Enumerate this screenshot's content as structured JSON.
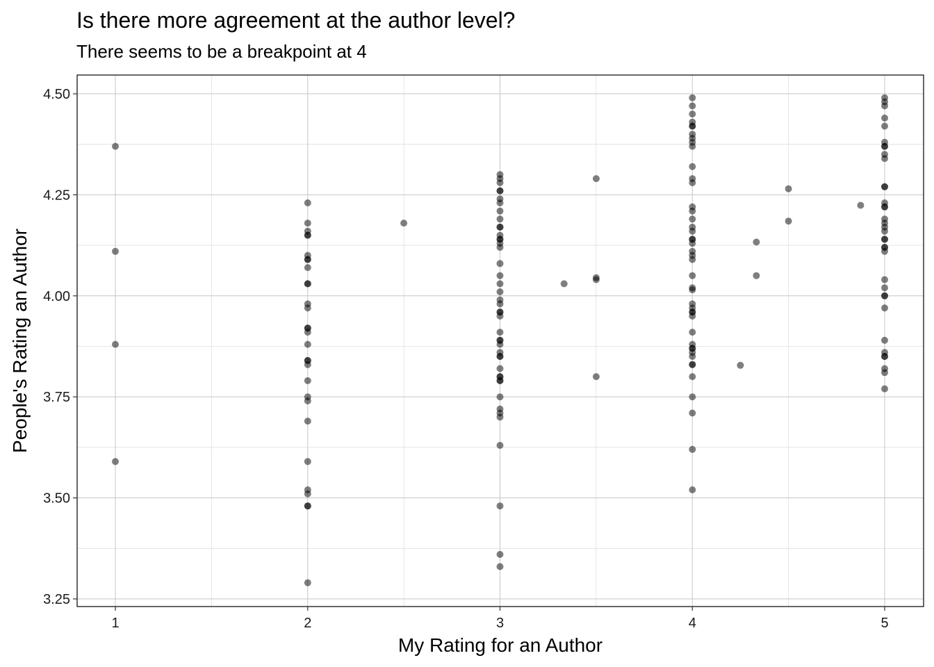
{
  "chart_data": {
    "type": "scatter",
    "title": "Is there more agreement at the author level?",
    "subtitle": "There seems to be a breakpoint at 4",
    "xlabel": "My Rating for an Author",
    "ylabel": "People's Rating an Author",
    "xlim": [
      0.8,
      5.2
    ],
    "ylim": [
      3.23,
      4.55
    ],
    "x_ticks": [
      1,
      2,
      3,
      4,
      5
    ],
    "x_tick_labels": [
      "1",
      "2",
      "3",
      "4",
      "5"
    ],
    "y_ticks": [
      3.25,
      3.5,
      3.75,
      4.0,
      4.25,
      4.5
    ],
    "y_tick_labels": [
      "3.25",
      "3.50",
      "3.75",
      "4.00",
      "4.25",
      "4.50"
    ],
    "grid": true,
    "point_color": "#000000",
    "point_opacity": 0.5,
    "points": [
      [
        1,
        4.37
      ],
      [
        1,
        4.11
      ],
      [
        1,
        3.88
      ],
      [
        1,
        3.59
      ],
      [
        2,
        4.23
      ],
      [
        2,
        4.18
      ],
      [
        2,
        4.16
      ],
      [
        2,
        4.15
      ],
      [
        2,
        4.15
      ],
      [
        2,
        4.1
      ],
      [
        2,
        4.09
      ],
      [
        2,
        4.09
      ],
      [
        2,
        4.07
      ],
      [
        2,
        4.03
      ],
      [
        2,
        4.03
      ],
      [
        2,
        3.98
      ],
      [
        2,
        3.97
      ],
      [
        2,
        3.92
      ],
      [
        2,
        3.92
      ],
      [
        2,
        3.91
      ],
      [
        2,
        3.88
      ],
      [
        2,
        3.84
      ],
      [
        2,
        3.84
      ],
      [
        2,
        3.83
      ],
      [
        2,
        3.79
      ],
      [
        2,
        3.75
      ],
      [
        2,
        3.74
      ],
      [
        2,
        3.69
      ],
      [
        2,
        3.59
      ],
      [
        2,
        3.52
      ],
      [
        2,
        3.51
      ],
      [
        2,
        3.48
      ],
      [
        2,
        3.48
      ],
      [
        2,
        3.29
      ],
      [
        2.5,
        4.18
      ],
      [
        3,
        4.3
      ],
      [
        3,
        4.29
      ],
      [
        3,
        4.28
      ],
      [
        3,
        4.26
      ],
      [
        3,
        4.26
      ],
      [
        3,
        4.24
      ],
      [
        3,
        4.23
      ],
      [
        3,
        4.21
      ],
      [
        3,
        4.19
      ],
      [
        3,
        4.17
      ],
      [
        3,
        4.17
      ],
      [
        3,
        4.15
      ],
      [
        3,
        4.14
      ],
      [
        3,
        4.14
      ],
      [
        3,
        4.13
      ],
      [
        3,
        4.12
      ],
      [
        3,
        4.08
      ],
      [
        3,
        4.05
      ],
      [
        3,
        4.03
      ],
      [
        3,
        4.01
      ],
      [
        3,
        3.99
      ],
      [
        3,
        3.98
      ],
      [
        3,
        3.96
      ],
      [
        3,
        3.96
      ],
      [
        3,
        3.95
      ],
      [
        3,
        3.91
      ],
      [
        3,
        3.89
      ],
      [
        3,
        3.89
      ],
      [
        3,
        3.88
      ],
      [
        3,
        3.86
      ],
      [
        3,
        3.85
      ],
      [
        3,
        3.85
      ],
      [
        3,
        3.82
      ],
      [
        3,
        3.8
      ],
      [
        3,
        3.8
      ],
      [
        3,
        3.79
      ],
      [
        3,
        3.79
      ],
      [
        3,
        3.75
      ],
      [
        3,
        3.72
      ],
      [
        3,
        3.71
      ],
      [
        3,
        3.7
      ],
      [
        3,
        3.63
      ],
      [
        3,
        3.48
      ],
      [
        3,
        3.36
      ],
      [
        3,
        3.33
      ],
      [
        3.333,
        4.03
      ],
      [
        3.5,
        4.29
      ],
      [
        3.5,
        4.045
      ],
      [
        3.5,
        4.04
      ],
      [
        3.5,
        3.8
      ],
      [
        4,
        4.49
      ],
      [
        4,
        4.47
      ],
      [
        4,
        4.45
      ],
      [
        4,
        4.43
      ],
      [
        4,
        4.42
      ],
      [
        4,
        4.42
      ],
      [
        4,
        4.4
      ],
      [
        4,
        4.39
      ],
      [
        4,
        4.38
      ],
      [
        4,
        4.37
      ],
      [
        4,
        4.32
      ],
      [
        4,
        4.29
      ],
      [
        4,
        4.28
      ],
      [
        4,
        4.22
      ],
      [
        4,
        4.21
      ],
      [
        4,
        4.19
      ],
      [
        4,
        4.17
      ],
      [
        4,
        4.16
      ],
      [
        4,
        4.14
      ],
      [
        4,
        4.14
      ],
      [
        4,
        4.13
      ],
      [
        4,
        4.11
      ],
      [
        4,
        4.1
      ],
      [
        4,
        4.09
      ],
      [
        4,
        4.05
      ],
      [
        4,
        4.02
      ],
      [
        4,
        4.015
      ],
      [
        4,
        3.98
      ],
      [
        4,
        3.97
      ],
      [
        4,
        3.96
      ],
      [
        4,
        3.96
      ],
      [
        4,
        3.95
      ],
      [
        4,
        3.91
      ],
      [
        4,
        3.88
      ],
      [
        4,
        3.87
      ],
      [
        4,
        3.87
      ],
      [
        4,
        3.86
      ],
      [
        4,
        3.85
      ],
      [
        4,
        3.83
      ],
      [
        4,
        3.83
      ],
      [
        4,
        3.8
      ],
      [
        4,
        3.75
      ],
      [
        4,
        3.71
      ],
      [
        4,
        3.62
      ],
      [
        4,
        3.52
      ],
      [
        4.25,
        3.828
      ],
      [
        4.333,
        4.133
      ],
      [
        4.333,
        4.05
      ],
      [
        4.5,
        4.265
      ],
      [
        4.5,
        4.185
      ],
      [
        4.875,
        4.224
      ],
      [
        5,
        4.49
      ],
      [
        5,
        4.48
      ],
      [
        5,
        4.47
      ],
      [
        5,
        4.44
      ],
      [
        5,
        4.42
      ],
      [
        5,
        4.38
      ],
      [
        5,
        4.37
      ],
      [
        5,
        4.37
      ],
      [
        5,
        4.35
      ],
      [
        5,
        4.34
      ],
      [
        5,
        4.27
      ],
      [
        5,
        4.27
      ],
      [
        5,
        4.23
      ],
      [
        5,
        4.22
      ],
      [
        5,
        4.22
      ],
      [
        5,
        4.19
      ],
      [
        5,
        4.18
      ],
      [
        5,
        4.17
      ],
      [
        5,
        4.16
      ],
      [
        5,
        4.14
      ],
      [
        5,
        4.14
      ],
      [
        5,
        4.12
      ],
      [
        5,
        4.12
      ],
      [
        5,
        4.11
      ],
      [
        5,
        4.04
      ],
      [
        5,
        4.02
      ],
      [
        5,
        4.0
      ],
      [
        5,
        4.0
      ],
      [
        5,
        3.97
      ],
      [
        5,
        3.89
      ],
      [
        5,
        3.86
      ],
      [
        5,
        3.85
      ],
      [
        5,
        3.85
      ],
      [
        5,
        3.82
      ],
      [
        5,
        3.81
      ],
      [
        5,
        3.77
      ]
    ]
  }
}
